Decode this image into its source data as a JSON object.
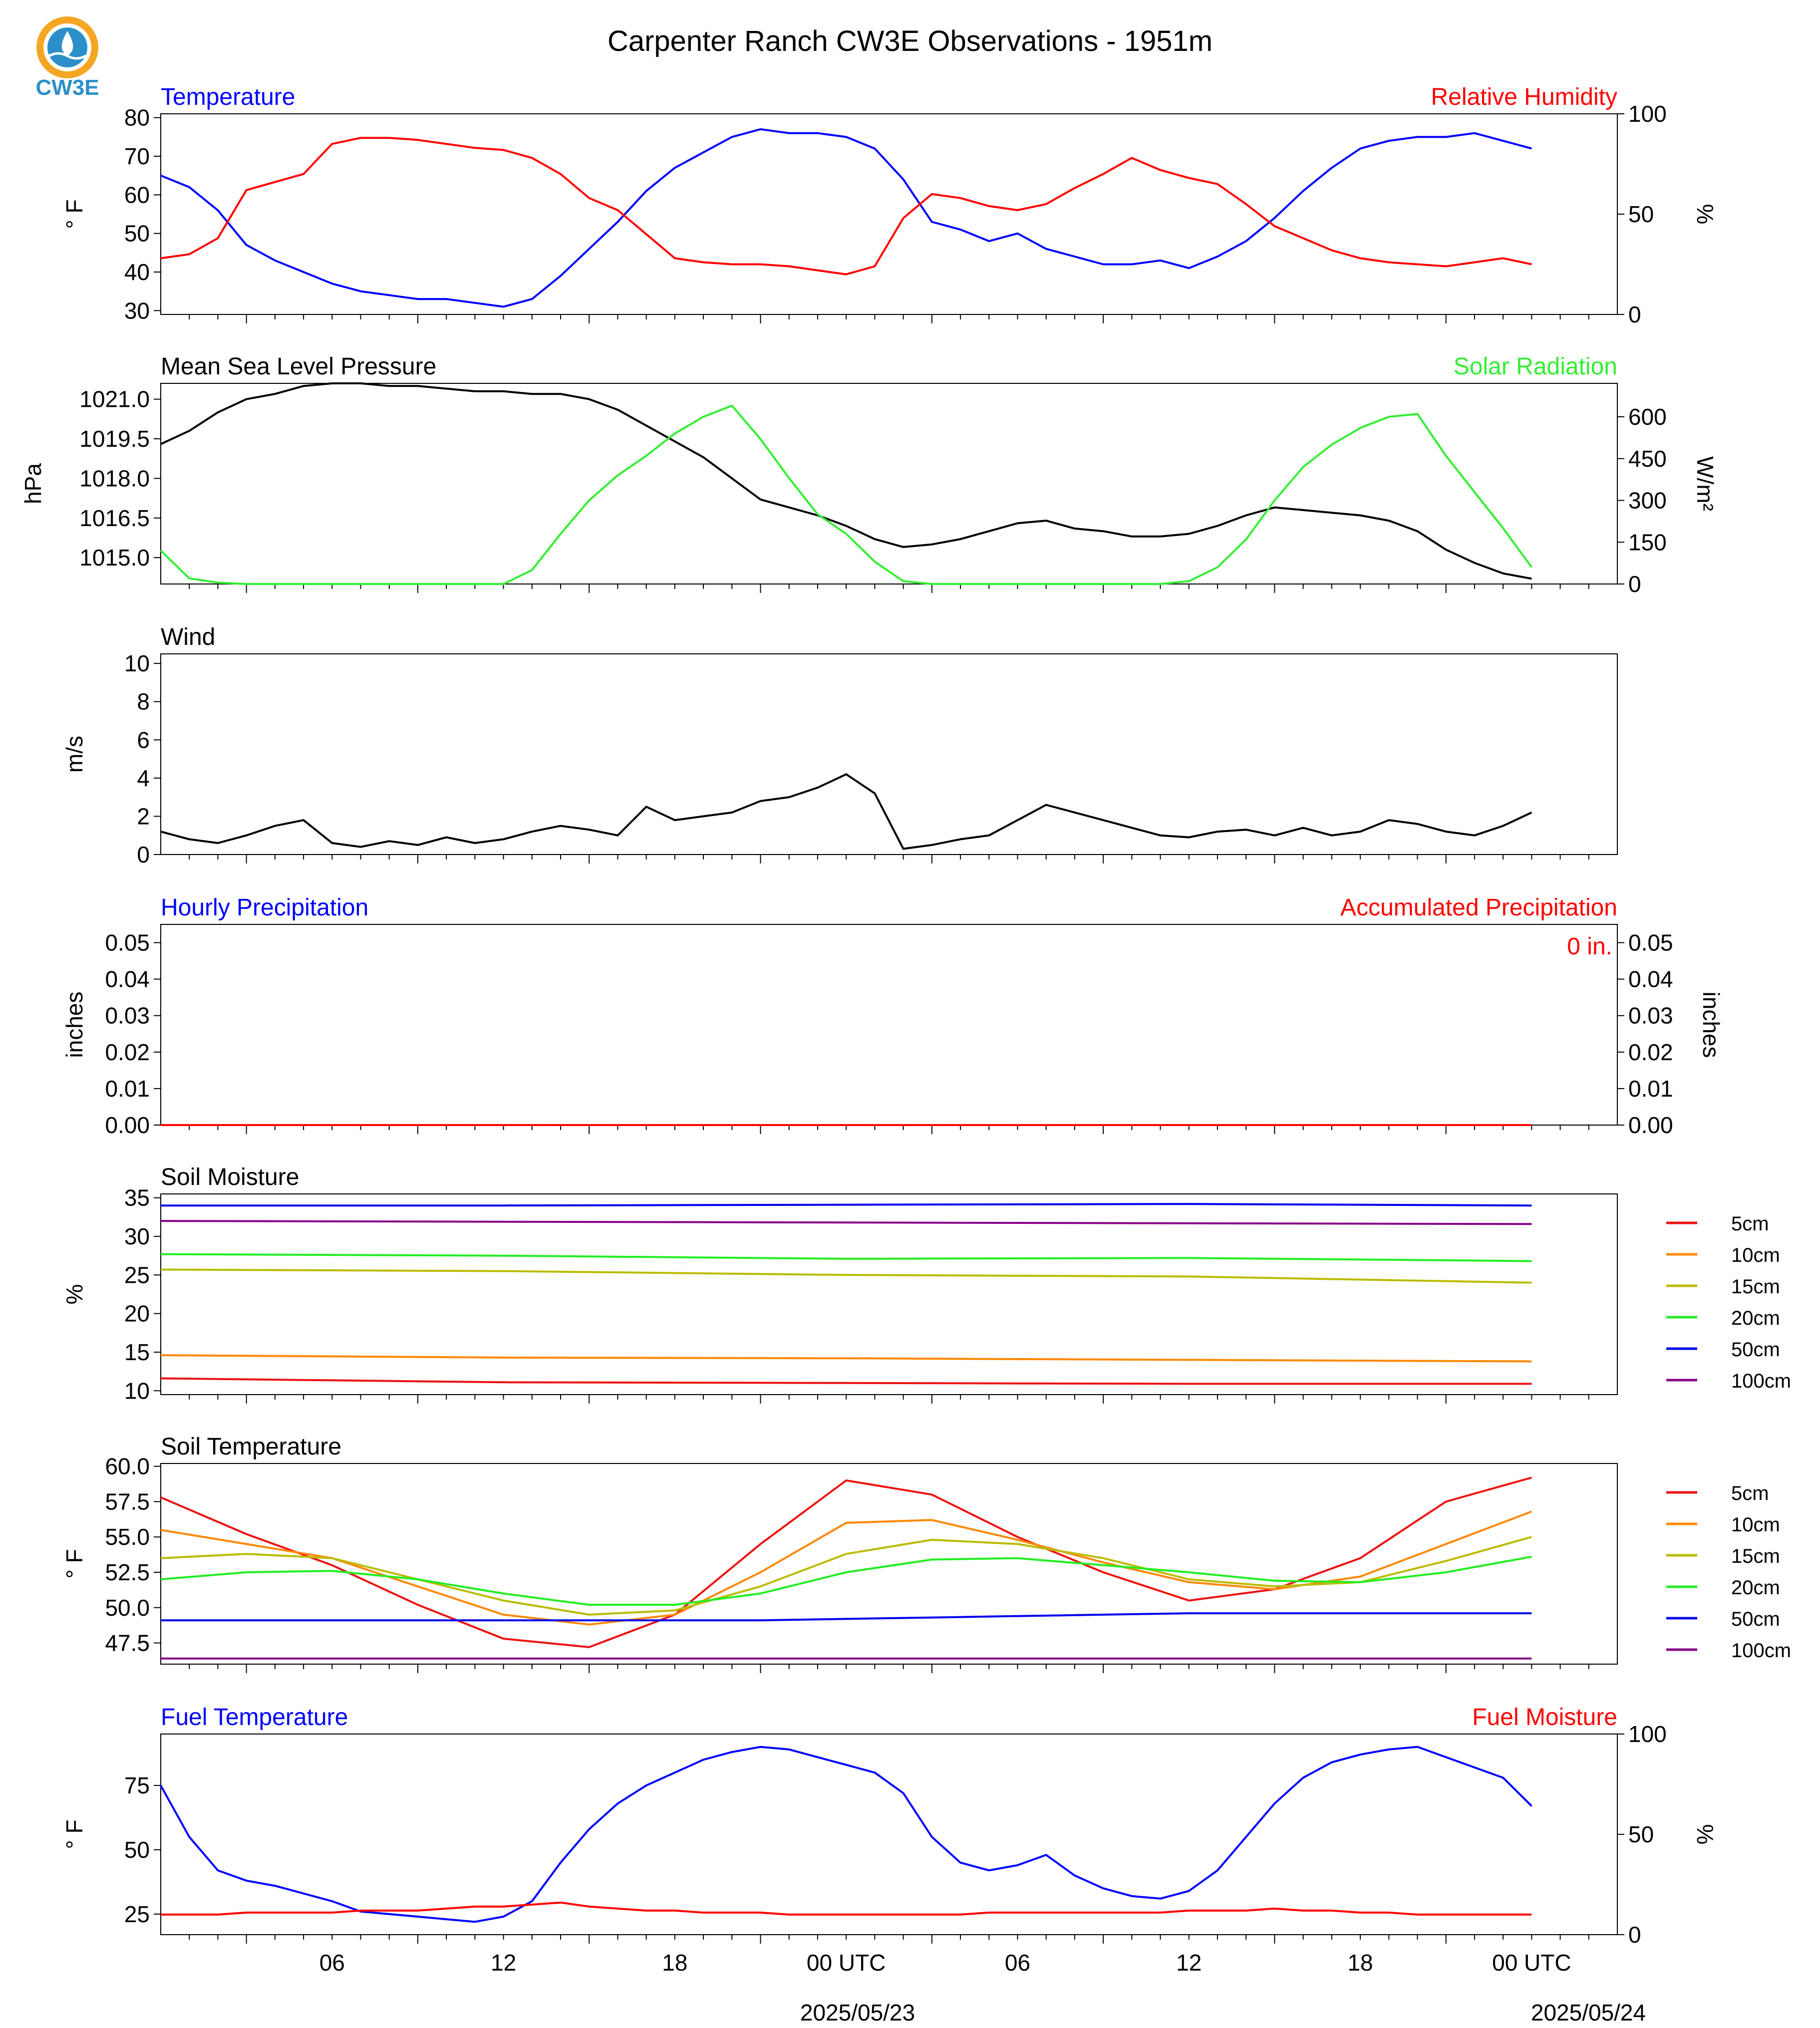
{
  "page_title": "Carpenter Ranch CW3E Observations - 1951m",
  "logo": {
    "text": "CW3E",
    "icon": "cw3e-logo-icon",
    "colors": {
      "ring": "#F5A623",
      "drop": "#2C8FC9",
      "text": "#2C8FC9"
    }
  },
  "colors": {
    "blue": "#0000ff",
    "red": "#ff0000",
    "green": "#33ee33",
    "black": "#000000",
    "soil_5cm": "#ee1111",
    "soil_10cm": "#ff8800",
    "soil_15cm": "#bbbb00",
    "soil_20cm": "#22ee22",
    "soil_50cm": "#0000ee",
    "soil_100cm": "#880088"
  },
  "x_axis": {
    "tick_labels": [
      "06",
      "12",
      "18",
      "00 UTC",
      "06",
      "12",
      "18",
      "00 UTC"
    ],
    "date_labels": [
      "2025/05/23",
      "2025/05/24"
    ]
  },
  "legend": {
    "entries": [
      "5cm",
      "10cm",
      "15cm",
      "20cm",
      "50cm",
      "100cm"
    ]
  },
  "chart_data": [
    {
      "type": "line",
      "panel": "temperature-humidity",
      "left_title": "Temperature",
      "right_title": "Relative Humidity",
      "ylabel": "° F",
      "ylabel_right": "%",
      "ylim": [
        29,
        81
      ],
      "ylim_right": [
        0,
        100
      ],
      "yticks": [
        "30",
        "40",
        "50",
        "60",
        "70",
        "80"
      ],
      "yticks_right": [
        "0",
        "50",
        "100"
      ],
      "x_hours": [
        0,
        1,
        2,
        3,
        4,
        5,
        6,
        7,
        8,
        9,
        10,
        11,
        12,
        13,
        14,
        15,
        16,
        17,
        18,
        19,
        20,
        21,
        22,
        23,
        24,
        25,
        26,
        27,
        28,
        29,
        30,
        31,
        32,
        33,
        34,
        35,
        36,
        37,
        38,
        39,
        40,
        41,
        42,
        43,
        44,
        45,
        46,
        47,
        48
      ],
      "series": [
        {
          "name": "Temperature",
          "axis": "left",
          "color_key": "blue",
          "values": [
            65,
            62,
            56,
            47,
            43,
            40,
            37,
            35,
            34,
            33,
            33,
            32,
            31,
            33,
            39,
            46,
            53,
            61,
            67,
            71,
            75,
            77,
            76,
            76,
            75,
            72,
            64,
            53,
            51,
            48,
            50,
            46,
            44,
            42,
            42,
            43,
            41,
            44,
            48,
            54,
            61,
            67,
            72,
            74,
            75,
            75,
            76,
            74,
            72
          ]
        },
        {
          "name": "Relative Humidity",
          "axis": "right",
          "color_key": "red",
          "values": [
            28,
            30,
            38,
            62,
            66,
            70,
            85,
            88,
            88,
            87,
            85,
            83,
            82,
            78,
            70,
            58,
            52,
            40,
            28,
            26,
            25,
            25,
            24,
            22,
            20,
            24,
            48,
            60,
            58,
            54,
            52,
            55,
            63,
            70,
            78,
            72,
            68,
            65,
            55,
            44,
            38,
            32,
            28,
            26,
            25,
            24,
            26,
            28,
            25
          ]
        }
      ]
    },
    {
      "type": "line",
      "panel": "pressure-solar",
      "left_title": "Mean Sea Level Pressure",
      "right_title": "Solar Radiation",
      "ylabel": "hPa",
      "ylabel_right": "W/m²",
      "ylim": [
        1014.0,
        1021.6
      ],
      "ylim_right": [
        0,
        720
      ],
      "yticks": [
        "1015.0",
        "1016.5",
        "1018.0",
        "1019.5",
        "1021.0"
      ],
      "yticks_right": [
        "0",
        "150",
        "300",
        "450",
        "600"
      ],
      "x_hours": [
        0,
        1,
        2,
        3,
        4,
        5,
        6,
        7,
        8,
        9,
        10,
        11,
        12,
        13,
        14,
        15,
        16,
        17,
        18,
        19,
        20,
        21,
        22,
        23,
        24,
        25,
        26,
        27,
        28,
        29,
        30,
        31,
        32,
        33,
        34,
        35,
        36,
        37,
        38,
        39,
        40,
        41,
        42,
        43,
        44,
        45,
        46,
        47,
        48
      ],
      "series": [
        {
          "name": "Mean Sea Level Pressure",
          "axis": "left",
          "color_key": "black",
          "values": [
            1019.3,
            1019.8,
            1020.5,
            1021.0,
            1021.2,
            1021.5,
            1021.6,
            1021.6,
            1021.5,
            1021.5,
            1021.4,
            1021.3,
            1021.3,
            1021.2,
            1021.2,
            1021.0,
            1020.6,
            1020.0,
            1019.4,
            1018.8,
            1018.0,
            1017.2,
            1016.9,
            1016.6,
            1016.2,
            1015.7,
            1015.4,
            1015.5,
            1015.7,
            1016.0,
            1016.3,
            1016.4,
            1016.1,
            1016.0,
            1015.8,
            1015.8,
            1015.9,
            1016.2,
            1016.6,
            1016.9,
            1016.8,
            1016.7,
            1016.6,
            1016.4,
            1016.0,
            1015.3,
            1014.8,
            1014.4,
            1014.2
          ]
        },
        {
          "name": "Solar Radiation",
          "axis": "right",
          "color_key": "green",
          "values": [
            120,
            20,
            5,
            0,
            0,
            0,
            0,
            0,
            0,
            0,
            0,
            0,
            0,
            50,
            180,
            300,
            390,
            460,
            540,
            600,
            640,
            520,
            380,
            250,
            180,
            80,
            10,
            0,
            0,
            0,
            0,
            0,
            0,
            0,
            0,
            0,
            10,
            60,
            160,
            300,
            420,
            500,
            560,
            600,
            610,
            460,
            330,
            200,
            60
          ]
        }
      ]
    },
    {
      "type": "line",
      "panel": "wind",
      "left_title": "Wind",
      "ylabel": "m/s",
      "ylim": [
        0,
        10.5
      ],
      "yticks": [
        "0",
        "2",
        "4",
        "6",
        "8",
        "10"
      ],
      "x_hours": [
        0,
        1,
        2,
        3,
        4,
        5,
        6,
        7,
        8,
        9,
        10,
        11,
        12,
        13,
        14,
        15,
        16,
        17,
        18,
        19,
        20,
        21,
        22,
        23,
        24,
        25,
        26,
        27,
        28,
        29,
        30,
        31,
        32,
        33,
        34,
        35,
        36,
        37,
        38,
        39,
        40,
        41,
        42,
        43,
        44,
        45,
        46,
        47,
        48
      ],
      "series": [
        {
          "name": "Wind",
          "axis": "left",
          "color_key": "black",
          "values": [
            1.2,
            0.8,
            0.6,
            1.0,
            1.5,
            1.8,
            0.6,
            0.4,
            0.7,
            0.5,
            0.9,
            0.6,
            0.8,
            1.2,
            1.5,
            1.3,
            1.0,
            2.5,
            1.8,
            2.0,
            2.2,
            2.8,
            3.0,
            3.5,
            4.2,
            3.2,
            0.3,
            0.5,
            0.8,
            1.0,
            1.8,
            2.6,
            2.2,
            1.8,
            1.4,
            1.0,
            0.9,
            1.2,
            1.3,
            1.0,
            1.4,
            1.0,
            1.2,
            1.8,
            1.6,
            1.2,
            1.0,
            1.5,
            2.2
          ]
        }
      ]
    },
    {
      "type": "line",
      "panel": "precipitation",
      "left_title": "Hourly Precipitation",
      "right_title": "Accumulated Precipitation",
      "annotation": "0 in.",
      "ylabel": "inches",
      "ylabel_right": "inches",
      "ylim": [
        0,
        0.055
      ],
      "ylim_right": [
        0,
        0.055
      ],
      "yticks": [
        "0.00",
        "0.01",
        "0.02",
        "0.03",
        "0.04",
        "0.05"
      ],
      "yticks_right": [
        "0.00",
        "0.01",
        "0.02",
        "0.03",
        "0.04",
        "0.05"
      ],
      "x_hours": [
        0,
        48
      ],
      "series": [
        {
          "name": "Hourly Precipitation",
          "axis": "left",
          "color_key": "blue",
          "values": [
            0,
            0
          ]
        },
        {
          "name": "Accumulated Precipitation",
          "axis": "right",
          "color_key": "red",
          "values": [
            0,
            0
          ]
        }
      ]
    },
    {
      "type": "line",
      "panel": "soil-moisture",
      "left_title": "Soil Moisture",
      "ylabel": "%",
      "ylim": [
        9.5,
        35.5
      ],
      "yticks": [
        "10",
        "15",
        "20",
        "25",
        "30",
        "35"
      ],
      "x_hours": [
        0,
        12,
        24,
        36,
        48
      ],
      "series": [
        {
          "name": "5cm",
          "color_key": "soil_5cm",
          "values": [
            11.6,
            11.1,
            11.0,
            10.9,
            10.9
          ]
        },
        {
          "name": "10cm",
          "color_key": "soil_10cm",
          "values": [
            14.6,
            14.3,
            14.2,
            14.0,
            13.8
          ]
        },
        {
          "name": "15cm",
          "color_key": "soil_15cm",
          "values": [
            25.7,
            25.5,
            25.0,
            24.8,
            24.0
          ]
        },
        {
          "name": "20cm",
          "color_key": "soil_20cm",
          "values": [
            27.7,
            27.5,
            27.1,
            27.2,
            26.8
          ]
        },
        {
          "name": "50cm",
          "color_key": "soil_50cm",
          "values": [
            34.0,
            34.0,
            34.1,
            34.2,
            34.0
          ]
        },
        {
          "name": "100cm",
          "color_key": "soil_100cm",
          "values": [
            32.0,
            31.9,
            31.8,
            31.7,
            31.6
          ]
        }
      ]
    },
    {
      "type": "line",
      "panel": "soil-temperature",
      "left_title": "Soil Temperature",
      "ylabel": "° F",
      "ylim": [
        46.0,
        60.2
      ],
      "yticks": [
        "47.5",
        "50.0",
        "52.5",
        "55.0",
        "57.5",
        "60.0"
      ],
      "x_hours": [
        0,
        3,
        6,
        9,
        12,
        15,
        18,
        21,
        24,
        27,
        30,
        33,
        36,
        39,
        42,
        45,
        48
      ],
      "series": [
        {
          "name": "5cm",
          "color_key": "soil_5cm",
          "values": [
            57.8,
            55.2,
            53.0,
            50.2,
            47.8,
            47.2,
            49.5,
            54.5,
            59.0,
            58.0,
            55.0,
            52.5,
            50.5,
            51.3,
            53.5,
            57.5,
            59.2
          ]
        },
        {
          "name": "10cm",
          "color_key": "soil_10cm",
          "values": [
            55.5,
            54.5,
            53.5,
            51.5,
            49.5,
            48.8,
            49.5,
            52.5,
            56.0,
            56.2,
            54.8,
            53.2,
            51.8,
            51.3,
            52.2,
            54.5,
            56.8
          ]
        },
        {
          "name": "15cm",
          "color_key": "soil_15cm",
          "values": [
            53.5,
            53.8,
            53.5,
            52.0,
            50.5,
            49.5,
            49.8,
            51.5,
            53.8,
            54.8,
            54.5,
            53.5,
            52.0,
            51.5,
            51.8,
            53.3,
            55.0
          ]
        },
        {
          "name": "20cm",
          "color_key": "soil_20cm",
          "values": [
            52.0,
            52.5,
            52.6,
            52.0,
            51.0,
            50.2,
            50.2,
            51.0,
            52.5,
            53.4,
            53.5,
            53.0,
            52.5,
            51.9,
            51.8,
            52.5,
            53.6
          ]
        },
        {
          "name": "50cm",
          "color_key": "soil_50cm",
          "values": [
            49.1,
            49.1,
            49.1,
            49.1,
            49.1,
            49.1,
            49.1,
            49.1,
            49.2,
            49.3,
            49.4,
            49.5,
            49.6,
            49.6,
            49.6,
            49.6,
            49.6
          ]
        },
        {
          "name": "100cm",
          "color_key": "soil_100cm",
          "values": [
            46.4,
            46.4,
            46.4,
            46.4,
            46.4,
            46.4,
            46.4,
            46.4,
            46.4,
            46.4,
            46.4,
            46.4,
            46.4,
            46.4,
            46.4,
            46.4,
            46.4
          ]
        }
      ]
    },
    {
      "type": "line",
      "panel": "fuel",
      "left_title": "Fuel Temperature",
      "right_title": "Fuel Moisture",
      "ylabel": "° F",
      "ylabel_right": "%",
      "ylim": [
        17,
        95
      ],
      "ylim_right": [
        0,
        100
      ],
      "yticks": [
        "25",
        "50",
        "75"
      ],
      "yticks_right": [
        "0",
        "50",
        "100"
      ],
      "x_hours": [
        0,
        1,
        2,
        3,
        4,
        5,
        6,
        7,
        8,
        9,
        10,
        11,
        12,
        13,
        14,
        15,
        16,
        17,
        18,
        19,
        20,
        21,
        22,
        23,
        24,
        25,
        26,
        27,
        28,
        29,
        30,
        31,
        32,
        33,
        34,
        35,
        36,
        37,
        38,
        39,
        40,
        41,
        42,
        43,
        44,
        45,
        46,
        47,
        48
      ],
      "series": [
        {
          "name": "Fuel Temperature",
          "axis": "left",
          "color_key": "blue",
          "values": [
            75,
            55,
            42,
            38,
            36,
            33,
            30,
            26,
            25,
            24,
            23,
            22,
            24,
            30,
            45,
            58,
            68,
            75,
            80,
            85,
            88,
            90,
            89,
            86,
            83,
            80,
            72,
            55,
            45,
            42,
            44,
            48,
            40,
            35,
            32,
            31,
            34,
            42,
            55,
            68,
            78,
            84,
            87,
            89,
            90,
            86,
            82,
            78,
            67
          ]
        },
        {
          "name": "Fuel Moisture",
          "axis": "right",
          "color_key": "red",
          "values": [
            10,
            10,
            10,
            11,
            11,
            11,
            11,
            12,
            12,
            12,
            13,
            14,
            14,
            15,
            16,
            14,
            13,
            12,
            12,
            11,
            11,
            11,
            10,
            10,
            10,
            10,
            10,
            10,
            10,
            11,
            11,
            11,
            11,
            11,
            11,
            11,
            12,
            12,
            12,
            13,
            12,
            12,
            11,
            11,
            10,
            10,
            10,
            10,
            10
          ]
        }
      ]
    }
  ]
}
